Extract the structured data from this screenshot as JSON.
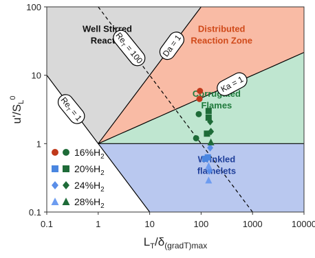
{
  "chart_data": {
    "type": "scatter",
    "title": "",
    "xlabel": "L_T/δ_(gradT)max",
    "ylabel": "u'/S_L^0",
    "xscale": "log",
    "yscale": "log",
    "xlim": [
      0.1,
      10000
    ],
    "ylim": [
      0.1,
      100
    ],
    "x_ticks": [
      "0.1",
      "1",
      "10",
      "100",
      "1000",
      "10000"
    ],
    "y_ticks": [
      "0.1",
      "1",
      "10",
      "100"
    ],
    "grid": false,
    "regions": [
      {
        "name": "Well Stirred Reactor",
        "color": "#d9d9d9",
        "lines": [
          "Well Stirred",
          "Reactor"
        ],
        "label_color": "#111111"
      },
      {
        "name": "Distributed Reaction Zone",
        "color": "#f9bba5",
        "lines": [
          "Distributed",
          "Reaction Zone"
        ],
        "label_color": "#d04a1a"
      },
      {
        "name": "Corrugated Flames",
        "color": "#bfe6d0",
        "lines": [
          "Corrugated",
          "Flames"
        ],
        "label_color": "#1f7a3c"
      },
      {
        "name": "Wrinkled flamelets",
        "color": "#b9c8ef",
        "lines": [
          "Wrinkled",
          "flamelets"
        ],
        "label_color": "#1f3f9a"
      }
    ],
    "boundary_lines": [
      {
        "label": "Re_T = 1",
        "label_text": "Re_T = 1"
      },
      {
        "label": "Re_T = 100",
        "label_text": "Re_T = 100"
      },
      {
        "label": "Da = 1",
        "label_text": "Da = 1"
      },
      {
        "label": "Ka = 1",
        "label_text": "Ka = 1"
      }
    ],
    "series": [
      {
        "name": "16%H2",
        "markers": [
          "circle"
        ],
        "colors": [
          "#c0391b",
          "#1e6b38"
        ],
        "points": [
          {
            "x": 95,
            "y": 5.9,
            "c": 0
          },
          {
            "x": 93,
            "y": 4.5,
            "c": 0
          },
          {
            "x": 90,
            "y": 2.7,
            "c": 1
          },
          {
            "x": 80,
            "y": 1.2,
            "c": 1
          }
        ]
      },
      {
        "name": "20%H2",
        "markers": [
          "square"
        ],
        "colors": [
          "#4a86e0",
          "#1e6b38"
        ],
        "points": [
          {
            "x": 140,
            "y": 3.0,
            "c": 1
          },
          {
            "x": 140,
            "y": 2.4,
            "c": 1
          },
          {
            "x": 130,
            "y": 1.4,
            "c": 1
          },
          {
            "x": 120,
            "y": 0.6,
            "c": 0
          },
          {
            "x": 135,
            "y": 0.63,
            "c": 0
          }
        ]
      },
      {
        "name": "24%H2",
        "markers": [
          "diamond"
        ],
        "colors": [
          "#5a8ee8",
          "#1e6b38"
        ],
        "points": [
          {
            "x": 150,
            "y": 2.1,
            "c": 1
          },
          {
            "x": 155,
            "y": 1.5,
            "c": 1
          },
          {
            "x": 150,
            "y": 0.87,
            "c": 0
          },
          {
            "x": 145,
            "y": 0.4,
            "c": 0
          }
        ]
      },
      {
        "name": "28%H2",
        "markers": [
          "triangle"
        ],
        "colors": [
          "#6d9cf0",
          "#1e6b38"
        ],
        "points": [
          {
            "x": 155,
            "y": 1.05,
            "c": 1
          },
          {
            "x": 140,
            "y": 0.47,
            "c": 0
          },
          {
            "x": 140,
            "y": 0.29,
            "c": 0
          }
        ]
      }
    ],
    "legend_position": "bottom-left"
  },
  "legend": [
    {
      "label": "16%H",
      "sub": "2"
    },
    {
      "label": "20%H",
      "sub": "2"
    },
    {
      "label": "24%H",
      "sub": "2"
    },
    {
      "label": "28%H",
      "sub": "2"
    }
  ]
}
